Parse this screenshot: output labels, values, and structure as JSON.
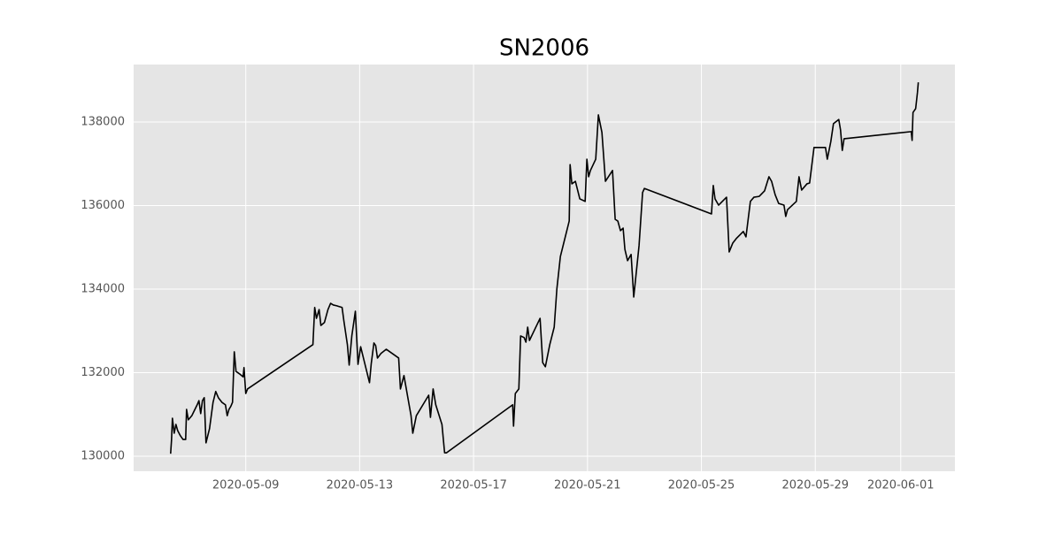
{
  "chart_data": {
    "type": "line",
    "title": "SN2006",
    "color": "#000000",
    "grid": true,
    "xlim": [
      "2020-05-05 01:30",
      "2020-06-02 21:40"
    ],
    "xticks": [
      "2020-05-09",
      "2020-05-13",
      "2020-05-17",
      "2020-05-21",
      "2020-05-25",
      "2020-05-29",
      "2020-06-01"
    ],
    "ylim": [
      129640,
      139376
    ],
    "yticks": [
      130000,
      132000,
      134000,
      136000,
      138000
    ],
    "x": [
      "2020-05-06 08:40",
      "2020-05-06 09:25",
      "2020-05-06 10:11",
      "2020-05-06 11:40",
      "2020-05-06 13:09",
      "2020-05-06 14:39",
      "2020-05-06 16:53",
      "2020-05-06 19:07",
      "2020-05-06 21:21",
      "2020-05-06 22:06",
      "2020-05-06 23:35",
      "2020-05-07 02:34",
      "2020-05-07 07:02",
      "2020-05-07 08:31",
      "2020-05-07 10:01",
      "2020-05-07 11:30",
      "2020-05-07 13:00",
      "2020-05-07 14:29",
      "2020-05-07 17:28",
      "2020-05-07 20:26",
      "2020-05-07 22:41",
      "2020-05-08 00:55",
      "2020-05-08 03:53",
      "2020-05-08 06:52",
      "2020-05-08 08:22",
      "2020-05-08 09:51",
      "2020-05-08 11:20",
      "2020-05-08 12:50",
      "2020-05-08 14:19",
      "2020-05-08 15:48",
      "2020-05-08 18:47",
      "2020-05-08 21:46",
      "2020-05-08 22:31",
      "2020-05-09 00:00",
      "2020-05-09 01:29",
      "2020-05-11 08:36",
      "2020-05-11 10:06",
      "2020-05-11 11:35",
      "2020-05-11 13:49",
      "2020-05-11 15:19",
      "2020-05-11 18:17",
      "2020-05-11 21:16",
      "2020-05-11 23:30",
      "2020-05-12 01:44",
      "2020-05-12 04:43",
      "2020-05-12 09:11",
      "2020-05-12 10:41",
      "2020-05-12 13:39",
      "2020-05-12 15:09",
      "2020-05-12 17:23",
      "2020-05-12 20:22",
      "2020-05-12 22:36",
      "2020-05-13 00:50",
      "2020-05-13 08:17",
      "2020-05-13 09:46",
      "2020-05-13 12:00",
      "2020-05-13 13:29",
      "2020-05-13 14:59",
      "2020-05-13 17:58",
      "2020-05-13 22:26",
      "2020-05-14 08:51",
      "2020-05-14 10:21",
      "2020-05-14 13:19",
      "2020-05-14 19:17",
      "2020-05-14 20:46",
      "2020-05-14 23:45",
      "2020-05-15 10:11",
      "2020-05-15 11:40",
      "2020-05-15 13:54",
      "2020-05-15 16:08",
      "2020-05-15 21:21",
      "2020-05-15 23:35",
      "2020-05-16 01:05",
      "2020-05-18 08:56",
      "2020-05-18 09:41",
      "2020-05-18 11:10",
      "2020-05-18 14:09",
      "2020-05-18 15:39",
      "2020-05-18 18:37",
      "2020-05-18 20:07",
      "2020-05-18 21:36",
      "2020-05-18 23:05",
      "2020-05-19 08:02",
      "2020-05-19 10:16",
      "2020-05-19 12:30",
      "2020-05-19 16:13",
      "2020-05-19 19:57",
      "2020-05-19 22:11",
      "2020-05-20 01:09",
      "2020-05-20 08:36",
      "2020-05-20 09:21",
      "2020-05-20 10:50",
      "2020-05-20 13:49",
      "2020-05-20 17:32",
      "2020-05-20 22:01",
      "2020-05-20 23:30",
      "2020-05-21 00:59",
      "2020-05-21 02:29",
      "2020-05-21 06:57",
      "2020-05-21 09:11",
      "2020-05-21 12:10",
      "2020-05-21 15:08",
      "2020-05-21 21:06",
      "2020-05-21 23:20",
      "2020-05-22 01:34",
      "2020-05-22 03:48",
      "2020-05-22 06:02",
      "2020-05-22 07:32",
      "2020-05-22 09:46",
      "2020-05-22 12:45",
      "2020-05-22 14:59",
      "2020-05-22 19:27",
      "2020-05-22 22:26",
      "2020-05-22 23:55",
      "2020-05-25 08:31",
      "2020-05-25 10:01",
      "2020-05-25 11:30",
      "2020-05-25 14:29",
      "2020-05-25 21:11",
      "2020-05-25 23:25",
      "2020-05-26 02:24",
      "2020-05-26 05:23",
      "2020-05-26 11:20",
      "2020-05-26 13:34",
      "2020-05-26 17:18",
      "2020-05-26 20:17",
      "2020-05-27 00:45",
      "2020-05-27 05:13",
      "2020-05-27 08:56",
      "2020-05-27 11:10",
      "2020-05-27 14:09",
      "2020-05-27 17:08",
      "2020-05-27 21:36",
      "2020-05-27 23:05",
      "2020-05-28 00:35",
      "2020-05-28 08:02",
      "2020-05-28 10:16",
      "2020-05-28 12:30",
      "2020-05-28 16:58",
      "2020-05-28 19:12",
      "2020-05-28 22:55",
      "2020-05-29 08:36",
      "2020-05-29 10:06",
      "2020-05-29 13:04",
      "2020-05-29 15:18",
      "2020-05-29 19:47",
      "2020-05-29 21:16",
      "2020-05-29 22:45",
      "2020-05-30 00:15",
      "2020-06-01 08:51",
      "2020-06-01 09:36",
      "2020-06-01 10:21",
      "2020-06-01 12:35",
      "2020-06-01 14:04",
      "2020-06-01 14:49"
    ],
    "values": [
      130060,
      130380,
      130910,
      130550,
      130760,
      130610,
      130490,
      130400,
      130400,
      131120,
      130870,
      130970,
      131230,
      131330,
      131020,
      131330,
      131400,
      130320,
      130660,
      131290,
      131550,
      131400,
      131290,
      131230,
      130970,
      131120,
      131190,
      131290,
      132500,
      132030,
      131970,
      131900,
      132120,
      131500,
      131610,
      132670,
      133560,
      133300,
      133510,
      133130,
      133200,
      133510,
      133660,
      133620,
      133600,
      133560,
      133240,
      132670,
      132180,
      132880,
      133470,
      132200,
      132620,
      131760,
      132220,
      132710,
      132650,
      132350,
      132460,
      132560,
      132350,
      131610,
      131930,
      130970,
      130550,
      130970,
      131460,
      130930,
      131610,
      131230,
      130760,
      130080,
      130080,
      131230,
      130720,
      131500,
      131610,
      132880,
      132840,
      132730,
      133090,
      132770,
      133300,
      132240,
      132140,
      132670,
      133090,
      134000,
      134780,
      135630,
      136980,
      136520,
      136580,
      136160,
      136100,
      137110,
      136690,
      136840,
      137110,
      138170,
      137750,
      136580,
      136840,
      135670,
      135630,
      135400,
      135460,
      134950,
      134680,
      134830,
      133810,
      135040,
      136310,
      136410,
      135800,
      136480,
      136160,
      136010,
      136200,
      134890,
      135100,
      135210,
      135380,
      135250,
      136100,
      136200,
      136220,
      136350,
      136690,
      136580,
      136260,
      136050,
      136010,
      135740,
      135900,
      136100,
      136690,
      136370,
      136520,
      136540,
      137390,
      137390,
      137110,
      137530,
      137960,
      138060,
      137810,
      137320,
      137600,
      137770,
      137560,
      138230,
      138320,
      138700,
      138950
    ]
  }
}
